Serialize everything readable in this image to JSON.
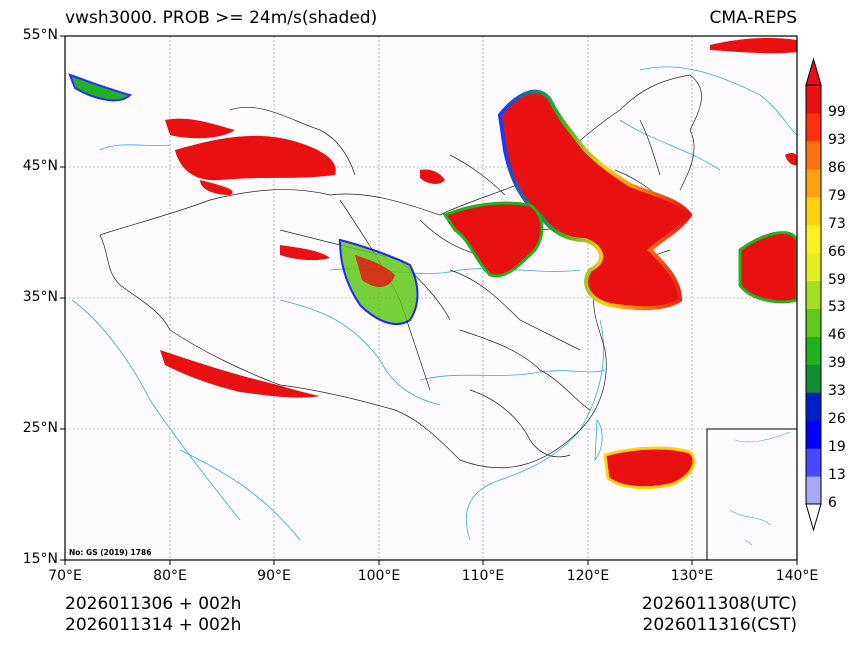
{
  "header": {
    "title": "vwsh3000. PROB >= 24m/s(shaded)",
    "model": "CMA-REPS"
  },
  "map": {
    "lat_labels": [
      "55°N",
      "45°N",
      "35°N",
      "25°N",
      "15°N"
    ],
    "lon_labels": [
      "70°E",
      "80°E",
      "90°E",
      "100°E",
      "110°E",
      "120°E",
      "130°E",
      "140°E"
    ],
    "extent": {
      "lon": [
        70,
        140
      ],
      "lat": [
        15,
        55
      ]
    },
    "watermark": "No: GS (2019) 1786"
  },
  "colorbar": {
    "labels": [
      "6",
      "13",
      "19",
      "26",
      "33",
      "39",
      "46",
      "53",
      "59",
      "66",
      "73",
      "79",
      "86",
      "93",
      "99"
    ],
    "colors": [
      "#a8a8f8",
      "#4848ff",
      "#0000ff",
      "#0020c8",
      "#109030",
      "#20b020",
      "#60c818",
      "#a0e020",
      "#e0f020",
      "#fff020",
      "#ffd010",
      "#ffa010",
      "#ff7010",
      "#ff3010",
      "#e81010"
    ],
    "top_color": "#e81010",
    "bottom_color": "#ffffff"
  },
  "footer": {
    "init_utc": "2026011306  +  002h",
    "init_cst": "2026011314  +  002h",
    "valid_utc": "2026011308(UTC)",
    "valid_cst": "2026011316(CST)"
  }
}
